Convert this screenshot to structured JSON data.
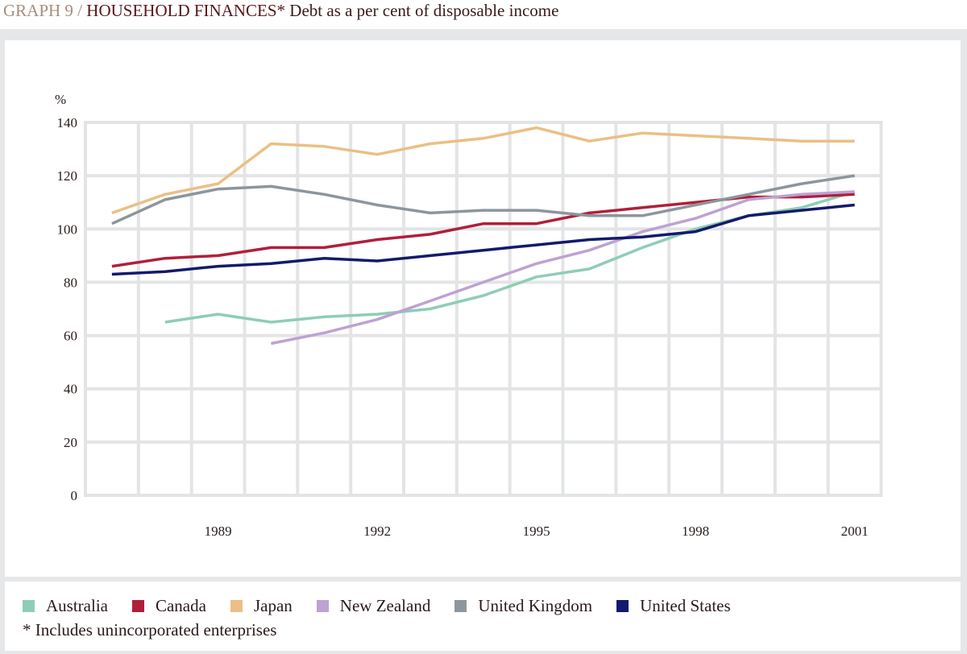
{
  "title": {
    "number": "GRAPH 9 /",
    "main": "HOUSEHOLD FINANCES*",
    "subtitle": "Debt as a per cent of disposable income"
  },
  "chart_data": {
    "type": "line",
    "title": "HOUSEHOLD FINANCES*",
    "subtitle": "Debt as a per cent of disposable income",
    "ylabel": "%",
    "xlabel": "",
    "ylim": [
      0,
      140
    ],
    "yticks": [
      "0",
      "20",
      "40",
      "60",
      "80",
      "100",
      "120",
      "140"
    ],
    "xlim": [
      1986.5,
      2001.5
    ],
    "xticks": [
      "1989",
      "1992",
      "1995",
      "1998",
      "2001"
    ],
    "grid": true,
    "legend_placement": "bottom",
    "x": [
      1987,
      1988,
      1989,
      1990,
      1991,
      1992,
      1993,
      1994,
      1995,
      1996,
      1997,
      1998,
      1999,
      2000,
      2001
    ],
    "series": [
      {
        "name": "Australia",
        "color": "#8ecdb6",
        "values": [
          null,
          65,
          68,
          65,
          67,
          68,
          70,
          75,
          82,
          85,
          93,
          100,
          105,
          108,
          114
        ]
      },
      {
        "name": "Canada",
        "color": "#b01f3a",
        "values": [
          86,
          89,
          90,
          93,
          93,
          96,
          98,
          102,
          102,
          106,
          108,
          110,
          112,
          112,
          113
        ]
      },
      {
        "name": "Japan",
        "color": "#ebbf85",
        "values": [
          106,
          113,
          117,
          132,
          131,
          128,
          132,
          134,
          138,
          133,
          136,
          135,
          134,
          133,
          133
        ]
      },
      {
        "name": "New Zealand",
        "color": "#bda2d3",
        "values": [
          null,
          null,
          null,
          57,
          61,
          66,
          73,
          80,
          87,
          92,
          99,
          104,
          111,
          113,
          114
        ]
      },
      {
        "name": "United Kingdom",
        "color": "#8c969c",
        "values": [
          102,
          111,
          115,
          116,
          113,
          109,
          106,
          107,
          107,
          105,
          105,
          109,
          113,
          117,
          120
        ]
      },
      {
        "name": "United States",
        "color": "#141a6b",
        "values": [
          83,
          84,
          86,
          87,
          89,
          88,
          90,
          92,
          94,
          96,
          97,
          99,
          105,
          107,
          109
        ]
      }
    ],
    "footnote": "* Includes unincorporated enterprises"
  }
}
